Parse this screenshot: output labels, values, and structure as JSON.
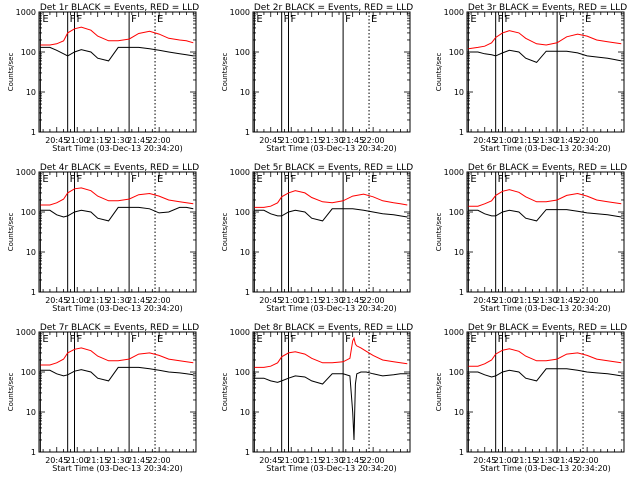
{
  "chart_data": {
    "type": "line",
    "x_tick_labels": [
      "20:45",
      "21:00",
      "21:15",
      "21:30",
      "21:45",
      "22:00"
    ],
    "x_ticks_min_after_2045": [
      0,
      15,
      30,
      45,
      60,
      75
    ],
    "x_range_min_after_2045": [
      -13,
      102
    ],
    "y_scale": "log",
    "y_range": [
      1,
      1000
    ],
    "y_tick_labels": [
      "1",
      "10",
      "100",
      "1000"
    ],
    "ylabel": "Counts/sec",
    "xlabel": "Start Time (03-Dec-13 20:34:20)",
    "series_colors": {
      "events": "#000000",
      "lld": "#ff0000"
    },
    "panels": [
      {
        "title": "Det 1r BLACK = Events, RED = LLD",
        "markers": [
          {
            "label": "E",
            "t": -12,
            "style": "solid"
          },
          {
            "label": "F",
            "t": 8,
            "style": "solid"
          },
          {
            "label": "F",
            "t": 13,
            "style": "solid"
          },
          {
            "label": "F",
            "t": 53,
            "style": "solid"
          },
          {
            "label": "E",
            "t": 72,
            "style": "dotted"
          }
        ],
        "x": [
          -12,
          -5,
          0,
          5,
          8,
          13,
          18,
          25,
          30,
          38,
          45,
          53,
          60,
          68,
          75,
          82,
          90,
          95,
          100
        ],
        "lld": [
          150,
          150,
          160,
          190,
          300,
          380,
          420,
          350,
          250,
          190,
          190,
          210,
          290,
          330,
          280,
          220,
          200,
          190,
          170
        ],
        "events": [
          130,
          130,
          110,
          90,
          80,
          100,
          115,
          100,
          70,
          60,
          130,
          130,
          130,
          120,
          110,
          100,
          90,
          85,
          80
        ]
      },
      {
        "title": "Det 2r BLACK = Events, RED = LLD",
        "markers": [
          {
            "label": "E",
            "t": -12,
            "style": "solid"
          },
          {
            "label": "F",
            "t": 8,
            "style": "solid"
          },
          {
            "label": "F",
            "t": 13,
            "style": "solid"
          },
          {
            "label": "F",
            "t": 53,
            "style": "solid"
          },
          {
            "label": "E",
            "t": 72,
            "style": "dotted"
          }
        ],
        "x": [],
        "lld": [],
        "events": []
      },
      {
        "title": "Det 3r BLACK = Events, RED = LLD",
        "markers": [
          {
            "label": "E",
            "t": -12,
            "style": "solid"
          },
          {
            "label": "F",
            "t": 8,
            "style": "solid"
          },
          {
            "label": "F",
            "t": 13,
            "style": "solid"
          },
          {
            "label": "F",
            "t": 53,
            "style": "solid"
          },
          {
            "label": "E",
            "t": 72,
            "style": "dotted"
          }
        ],
        "x": [
          -12,
          -5,
          0,
          5,
          8,
          13,
          18,
          25,
          30,
          38,
          45,
          53,
          60,
          68,
          75,
          82,
          90,
          95,
          100
        ],
        "lld": [
          120,
          130,
          140,
          170,
          230,
          300,
          340,
          300,
          220,
          160,
          150,
          170,
          240,
          280,
          250,
          200,
          180,
          170,
          160
        ],
        "events": [
          100,
          100,
          90,
          85,
          80,
          95,
          110,
          100,
          70,
          55,
          105,
          105,
          105,
          95,
          80,
          75,
          70,
          65,
          60
        ]
      },
      {
        "title": "Det 4r BLACK = Events, RED = LLD",
        "markers": [
          {
            "label": "E",
            "t": -12,
            "style": "solid"
          },
          {
            "label": "F",
            "t": 8,
            "style": "solid"
          },
          {
            "label": "F",
            "t": 13,
            "style": "solid"
          },
          {
            "label": "F",
            "t": 53,
            "style": "solid"
          },
          {
            "label": "E",
            "t": 72,
            "style": "dotted"
          }
        ],
        "x": [
          -12,
          -5,
          0,
          5,
          8,
          13,
          18,
          25,
          30,
          38,
          45,
          53,
          60,
          68,
          75,
          82,
          90,
          95,
          100
        ],
        "lld": [
          150,
          150,
          170,
          210,
          300,
          380,
          400,
          340,
          250,
          190,
          190,
          210,
          270,
          290,
          250,
          200,
          180,
          170,
          160
        ],
        "events": [
          110,
          110,
          85,
          75,
          80,
          100,
          110,
          100,
          70,
          60,
          130,
          130,
          130,
          120,
          95,
          100,
          130,
          130,
          120
        ]
      },
      {
        "title": "Det 5r BLACK = Events, RED = LLD",
        "markers": [
          {
            "label": "E",
            "t": -12,
            "style": "solid"
          },
          {
            "label": "F",
            "t": 8,
            "style": "solid"
          },
          {
            "label": "F",
            "t": 13,
            "style": "solid"
          },
          {
            "label": "F",
            "t": 53,
            "style": "solid"
          },
          {
            "label": "E",
            "t": 72,
            "style": "dotted"
          }
        ],
        "x": [
          -12,
          -5,
          0,
          5,
          8,
          13,
          18,
          25,
          30,
          38,
          45,
          53,
          60,
          68,
          75,
          82,
          90,
          95,
          100
        ],
        "lld": [
          130,
          130,
          140,
          170,
          240,
          300,
          340,
          300,
          230,
          180,
          170,
          190,
          250,
          280,
          240,
          190,
          170,
          160,
          150
        ],
        "events": [
          110,
          110,
          90,
          80,
          80,
          100,
          110,
          100,
          70,
          60,
          120,
          120,
          120,
          110,
          100,
          90,
          85,
          80,
          75
        ]
      },
      {
        "title": "Det 6r BLACK = Events, RED = LLD",
        "markers": [
          {
            "label": "E",
            "t": -12,
            "style": "solid"
          },
          {
            "label": "F",
            "t": 8,
            "style": "solid"
          },
          {
            "label": "F",
            "t": 13,
            "style": "solid"
          },
          {
            "label": "F",
            "t": 53,
            "style": "solid"
          },
          {
            "label": "E",
            "t": 72,
            "style": "dotted"
          }
        ],
        "x": [
          -12,
          -5,
          0,
          5,
          8,
          13,
          18,
          25,
          30,
          38,
          45,
          53,
          60,
          68,
          75,
          82,
          90,
          95,
          100
        ],
        "lld": [
          140,
          140,
          160,
          190,
          260,
          330,
          360,
          310,
          240,
          180,
          180,
          200,
          260,
          290,
          250,
          200,
          180,
          170,
          160
        ],
        "events": [
          110,
          110,
          90,
          80,
          80,
          100,
          110,
          100,
          70,
          60,
          115,
          115,
          115,
          105,
          95,
          90,
          85,
          80,
          75
        ]
      },
      {
        "title": "Det 7r BLACK = Events, RED = LLD",
        "markers": [
          {
            "label": "E",
            "t": -12,
            "style": "solid"
          },
          {
            "label": "F",
            "t": 8,
            "style": "solid"
          },
          {
            "label": "F",
            "t": 13,
            "style": "solid"
          },
          {
            "label": "F",
            "t": 53,
            "style": "solid"
          },
          {
            "label": "E",
            "t": 72,
            "style": "dotted"
          }
        ],
        "x": [
          -12,
          -5,
          0,
          5,
          8,
          13,
          18,
          25,
          30,
          38,
          45,
          53,
          60,
          68,
          75,
          82,
          90,
          95,
          100
        ],
        "lld": [
          150,
          150,
          170,
          210,
          300,
          370,
          400,
          340,
          250,
          190,
          190,
          210,
          280,
          300,
          260,
          210,
          190,
          180,
          170
        ],
        "events": [
          110,
          110,
          90,
          80,
          85,
          105,
          115,
          100,
          70,
          60,
          130,
          130,
          130,
          120,
          110,
          100,
          95,
          90,
          85
        ]
      },
      {
        "title": "Det 8r BLACK = Events, RED = LLD",
        "markers": [
          {
            "label": "E",
            "t": -12,
            "style": "solid"
          },
          {
            "label": "F",
            "t": 8,
            "style": "solid"
          },
          {
            "label": "F",
            "t": 13,
            "style": "solid"
          },
          {
            "label": "F",
            "t": 53,
            "style": "solid"
          },
          {
            "label": "E",
            "t": 72,
            "style": "dotted"
          }
        ],
        "x": [
          -12,
          -5,
          0,
          5,
          8,
          13,
          18,
          25,
          30,
          38,
          45,
          53,
          58,
          60,
          61,
          62,
          63,
          66,
          70,
          75,
          82,
          90,
          95,
          100
        ],
        "lld": [
          130,
          130,
          140,
          170,
          240,
          300,
          320,
          280,
          220,
          170,
          170,
          180,
          220,
          600,
          700,
          500,
          450,
          400,
          330,
          260,
          200,
          180,
          170,
          160
        ],
        "events": [
          70,
          70,
          60,
          55,
          60,
          70,
          80,
          75,
          60,
          50,
          90,
          90,
          80,
          10,
          2,
          50,
          90,
          100,
          100,
          90,
          80,
          85,
          90,
          90
        ]
      },
      {
        "title": "Det 9r BLACK = Events, RED = LLD",
        "markers": [
          {
            "label": "E",
            "t": -12,
            "style": "solid"
          },
          {
            "label": "F",
            "t": 8,
            "style": "solid"
          },
          {
            "label": "F",
            "t": 13,
            "style": "solid"
          },
          {
            "label": "F",
            "t": 53,
            "style": "solid"
          },
          {
            "label": "E",
            "t": 72,
            "style": "dotted"
          }
        ],
        "x": [
          -12,
          -5,
          0,
          5,
          8,
          13,
          18,
          25,
          30,
          38,
          45,
          53,
          60,
          68,
          75,
          82,
          90,
          95,
          100
        ],
        "lld": [
          140,
          140,
          160,
          200,
          280,
          350,
          380,
          330,
          250,
          190,
          190,
          210,
          280,
          300,
          260,
          210,
          190,
          180,
          170
        ],
        "events": [
          100,
          100,
          85,
          75,
          80,
          100,
          110,
          100,
          70,
          60,
          120,
          120,
          120,
          110,
          100,
          95,
          90,
          85,
          80
        ]
      }
    ]
  }
}
